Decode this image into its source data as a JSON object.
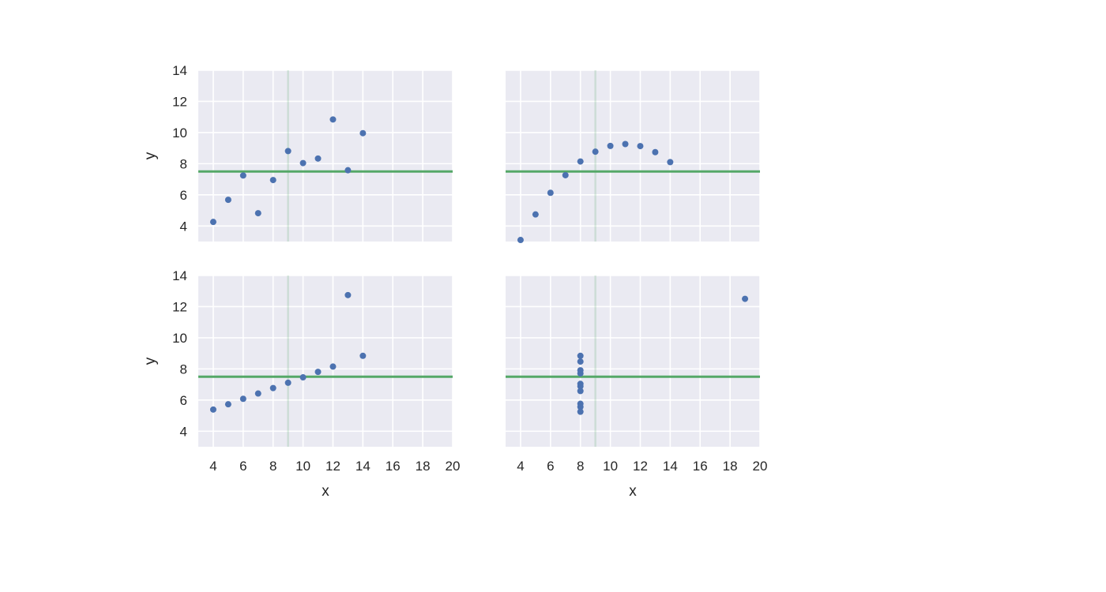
{
  "chart_data": [
    {
      "type": "scatter",
      "panel": "top-left",
      "x": [
        10,
        8,
        13,
        9,
        11,
        14,
        6,
        4,
        12,
        7,
        5
      ],
      "y": [
        8.04,
        6.95,
        7.58,
        8.81,
        8.33,
        9.96,
        7.24,
        4.26,
        10.84,
        4.82,
        5.68
      ],
      "xlabel": "",
      "ylabel": "y",
      "xlim": [
        3,
        20
      ],
      "ylim": [
        3,
        14
      ],
      "xticks": [
        4,
        6,
        8,
        10,
        12,
        14,
        16,
        18,
        20
      ],
      "yticks": [
        4,
        6,
        8,
        10,
        12,
        14
      ],
      "show_xticklabels": false,
      "show_yticklabels": true,
      "hline_y": 7.5,
      "vline_x": 9,
      "grid": true
    },
    {
      "type": "scatter",
      "panel": "top-right",
      "x": [
        10,
        8,
        13,
        9,
        11,
        14,
        6,
        4,
        12,
        7,
        5
      ],
      "y": [
        9.14,
        8.14,
        8.74,
        8.77,
        9.26,
        8.1,
        6.13,
        3.1,
        9.13,
        7.26,
        4.74
      ],
      "xlabel": "",
      "ylabel": "",
      "xlim": [
        3,
        20
      ],
      "ylim": [
        3,
        14
      ],
      "xticks": [
        4,
        6,
        8,
        10,
        12,
        14,
        16,
        18,
        20
      ],
      "yticks": [
        4,
        6,
        8,
        10,
        12,
        14
      ],
      "show_xticklabels": false,
      "show_yticklabels": false,
      "hline_y": 7.5,
      "vline_x": 9,
      "grid": true
    },
    {
      "type": "scatter",
      "panel": "bottom-left",
      "x": [
        10,
        8,
        13,
        9,
        11,
        14,
        6,
        4,
        12,
        7,
        5
      ],
      "y": [
        7.46,
        6.77,
        12.74,
        7.11,
        7.81,
        8.84,
        6.08,
        5.39,
        8.15,
        6.42,
        5.73
      ],
      "xlabel": "x",
      "ylabel": "y",
      "xlim": [
        3,
        20
      ],
      "ylim": [
        3,
        14
      ],
      "xticks": [
        4,
        6,
        8,
        10,
        12,
        14,
        16,
        18,
        20
      ],
      "yticks": [
        4,
        6,
        8,
        10,
        12,
        14
      ],
      "show_xticklabels": true,
      "show_yticklabels": true,
      "hline_y": 7.5,
      "vline_x": 9,
      "grid": true
    },
    {
      "type": "scatter",
      "panel": "bottom-right",
      "x": [
        8,
        8,
        8,
        8,
        8,
        8,
        8,
        19,
        8,
        8,
        8
      ],
      "y": [
        6.58,
        5.76,
        7.71,
        8.84,
        8.47,
        7.04,
        5.25,
        12.5,
        5.56,
        7.91,
        6.89
      ],
      "xlabel": "x",
      "ylabel": "",
      "xlim": [
        3,
        20
      ],
      "ylim": [
        3,
        14
      ],
      "xticks": [
        4,
        6,
        8,
        10,
        12,
        14,
        16,
        18,
        20
      ],
      "yticks": [
        4,
        6,
        8,
        10,
        12,
        14
      ],
      "show_xticklabels": true,
      "show_yticklabels": false,
      "hline_y": 7.5,
      "vline_x": 9,
      "grid": true
    }
  ],
  "colors": {
    "background": "#eaeaf2",
    "grid": "#ffffff",
    "points": "#4c72b0",
    "hline": "#55a868",
    "vline": "#55a868"
  }
}
